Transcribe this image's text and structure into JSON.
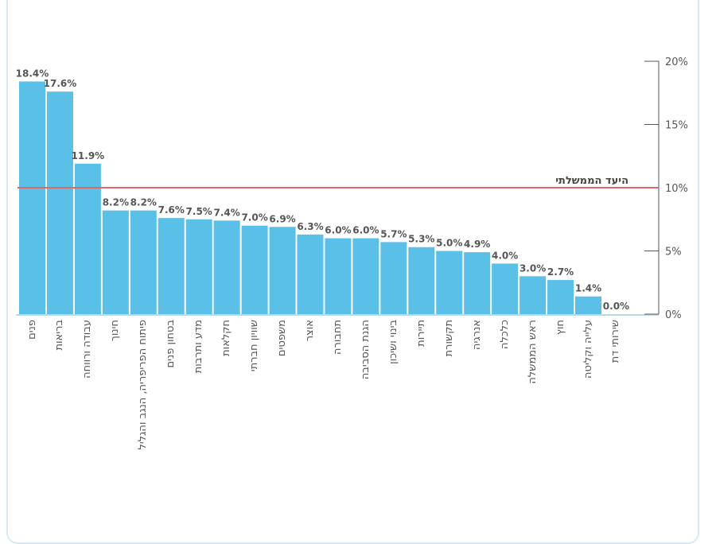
{
  "chart_data": {
    "type": "bar",
    "title": "",
    "xlabel": "",
    "ylabel": "",
    "ylim": [
      0,
      20
    ],
    "y_ticks": [
      "0%",
      "5%",
      "10%",
      "15%",
      "20%"
    ],
    "y_axis_position": "right",
    "grid": false,
    "bar_color": "#5bc0e8",
    "categories": [
      "פנים",
      "בריאות",
      "עבודה ורווחה",
      "חינוך",
      "פיתוח הפריפריה, הנגב והגליל",
      "בטחון פנים",
      "מדע ותרבות",
      "חקלאות",
      "שוויון חברתי",
      "משפטים",
      "אוצר",
      "תחבורה",
      "הגנת הסביבה",
      "בינוי ושיכון",
      "תיירות",
      "תקשורת",
      "אנרגיה",
      "כלכלה",
      "ראש הממשלה",
      "חוץ",
      "עלייה וקליטה",
      "שירותי דת"
    ],
    "values": [
      18.4,
      17.6,
      11.9,
      8.2,
      8.2,
      7.6,
      7.5,
      7.4,
      7.0,
      6.9,
      6.3,
      6.0,
      6.0,
      5.7,
      5.3,
      5.0,
      4.9,
      4.0,
      3.0,
      2.7,
      1.4,
      0.0
    ],
    "value_labels": [
      "18.4%",
      "17.6%",
      "11.9%",
      "8.2%",
      "8.2%",
      "7.6%",
      "7.5%",
      "7.4%",
      "7.0%",
      "6.9%",
      "6.3%",
      "6.0%",
      "6.0%",
      "5.7%",
      "5.3%",
      "5.0%",
      "4.9%",
      "4.0%",
      "3.0%",
      "2.7%",
      "1.4%",
      "0.0%"
    ],
    "reference_line": {
      "value": 10,
      "label": "היעד הממשלתי",
      "color": "#e06666"
    }
  }
}
